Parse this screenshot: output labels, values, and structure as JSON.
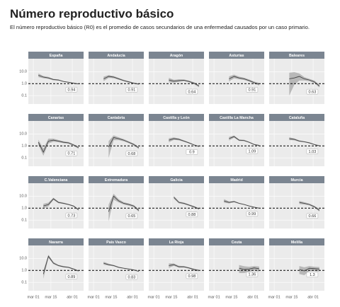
{
  "chart_data": {
    "type": "line",
    "title": "Número reproductivo básico",
    "subtitle": "El número reproductivo básico (R0) es el promedio de casos secundarios de una enfermedad causados por un caso primario.",
    "x": [
      4,
      8,
      12,
      16,
      20,
      24,
      28,
      32,
      36
    ],
    "xlim": [
      -4,
      40
    ],
    "xticks": [
      {
        "value": 0,
        "label": "mar 01"
      },
      {
        "value": 14,
        "label": "mar 15"
      },
      {
        "value": 31,
        "label": "abr 01"
      }
    ],
    "ylim": [
      0.02,
      120
    ],
    "yticks": [
      0.1,
      {
        "value": 1,
        "label": "1.0"
      },
      {
        "value": 10,
        "label": "10.0"
      }
    ],
    "log_y": true,
    "grid": true,
    "hline": 1,
    "color": "#444444",
    "band_color": "#b8b8b8",
    "panels": [
      {
        "title": "España",
        "values": [
          5,
          3.5,
          3,
          2.2,
          2,
          1.5,
          1.3,
          1.1,
          0.94
        ],
        "lower": [
          3.5,
          2.8,
          2.5,
          1.9,
          1.8,
          1.4,
          1.2,
          1,
          0.88
        ],
        "upper": [
          7,
          4.3,
          3.6,
          2.5,
          2.2,
          1.6,
          1.4,
          1.2,
          1
        ]
      },
      {
        "title": "Andalucía",
        "values": [
          null,
          2.5,
          4,
          3.5,
          2.5,
          1.8,
          1.4,
          1.1,
          0.91
        ],
        "lower": [
          null,
          1.6,
          3,
          2.8,
          2.1,
          1.6,
          1.2,
          1,
          0.8
        ],
        "upper": [
          null,
          3.8,
          5.2,
          4.3,
          3,
          2.1,
          1.6,
          1.2,
          1.03
        ]
      },
      {
        "title": "Aragón",
        "values": [
          null,
          null,
          2,
          1.6,
          1.8,
          1.9,
          1.5,
          1.1,
          0.64
        ],
        "lower": [
          null,
          null,
          1.3,
          1.2,
          1.4,
          1.6,
          1.3,
          0.9,
          0.5
        ],
        "upper": [
          null,
          null,
          3,
          2.1,
          2.3,
          2.2,
          1.8,
          1.3,
          0.8
        ]
      },
      {
        "title": "Asturias",
        "values": [
          null,
          null,
          2.5,
          4,
          3,
          2.5,
          1.8,
          1.2,
          0.91
        ],
        "lower": [
          null,
          null,
          1.5,
          2.8,
          2.3,
          2,
          1.5,
          1,
          0.7
        ],
        "upper": [
          null,
          null,
          4,
          5.6,
          3.8,
          3.1,
          2.2,
          1.5,
          1.15
        ]
      },
      {
        "title": "Baleares",
        "values": [
          null,
          null,
          2.5,
          3,
          4,
          2.5,
          2,
          1.4,
          0.63
        ],
        "lower": [
          null,
          null,
          0.1,
          0.8,
          1.8,
          1.8,
          1.6,
          1.1,
          0.48
        ],
        "upper": [
          null,
          null,
          8,
          9,
          7,
          3.5,
          2.5,
          1.8,
          0.8
        ]
      },
      {
        "title": "Canarias",
        "values": [
          2,
          0.3,
          2.5,
          3,
          2.5,
          2,
          1.8,
          1.2,
          0.71
        ],
        "lower": [
          1.2,
          0.15,
          1.6,
          2.2,
          2,
          1.7,
          1.5,
          1,
          0.58
        ],
        "upper": [
          3.2,
          0.6,
          4,
          4,
          3.1,
          2.4,
          2.1,
          1.4,
          0.86
        ]
      },
      {
        "title": "Cantabria",
        "values": [
          null,
          null,
          0.8,
          5,
          4,
          3,
          2,
          1.3,
          0.68
        ],
        "lower": [
          null,
          null,
          0.1,
          3,
          3,
          2.4,
          1.7,
          1.1,
          0.55
        ],
        "upper": [
          null,
          null,
          2.5,
          7.5,
          5.2,
          3.7,
          2.4,
          1.6,
          0.84
        ]
      },
      {
        "title": "Castilla y León",
        "values": [
          null,
          null,
          3,
          4,
          3.5,
          2.5,
          1.8,
          1.2,
          0.9
        ],
        "lower": [
          null,
          null,
          2,
          3.1,
          2.9,
          2.2,
          1.6,
          1.1,
          0.8
        ],
        "upper": [
          null,
          null,
          4.4,
          5.1,
          4.2,
          2.9,
          2,
          1.35,
          1
        ]
      },
      {
        "title": "Castilla La Mancha",
        "values": [
          null,
          null,
          4,
          6,
          3,
          2.8,
          2,
          1.3,
          1.09
        ],
        "lower": [
          null,
          null,
          2.8,
          4.8,
          2.6,
          2.5,
          1.8,
          1.2,
          1
        ],
        "upper": [
          null,
          null,
          5.6,
          7.4,
          3.5,
          3.2,
          2.2,
          1.45,
          1.2
        ]
      },
      {
        "title": "Cataluña",
        "values": [
          null,
          null,
          4,
          3.5,
          2.5,
          2.2,
          1.8,
          1.3,
          1.03
        ],
        "lower": [
          null,
          null,
          3,
          2.9,
          2.2,
          2,
          1.6,
          1.2,
          0.95
        ],
        "upper": [
          null,
          null,
          5.3,
          4.2,
          2.9,
          2.4,
          2,
          1.4,
          1.12
        ]
      },
      {
        "title": "C.Valenciana",
        "values": [
          null,
          1.5,
          2,
          6,
          3,
          2.5,
          2,
          1.5,
          0.73
        ],
        "lower": [
          null,
          1,
          1.4,
          4.8,
          2.6,
          2.2,
          1.8,
          1.3,
          0.62
        ],
        "upper": [
          null,
          2.3,
          2.9,
          7.4,
          3.5,
          2.9,
          2.2,
          1.7,
          0.86
        ]
      },
      {
        "title": "Extremadura",
        "values": [
          null,
          null,
          0.5,
          10,
          4,
          2.5,
          2,
          1.5,
          0.65
        ],
        "lower": [
          null,
          null,
          0.08,
          5,
          3,
          2,
          1.6,
          1.2,
          0.5
        ],
        "upper": [
          null,
          null,
          2,
          16,
          5.5,
          3.1,
          2.5,
          1.8,
          0.84
        ]
      },
      {
        "title": "Galicia",
        "values": [
          null,
          null,
          null,
          8,
          3,
          2.5,
          1.8,
          1.3,
          0.88
        ],
        "lower": [
          null,
          null,
          null,
          6,
          2.5,
          2.1,
          1.6,
          1.1,
          0.76
        ],
        "upper": [
          null,
          null,
          null,
          10.5,
          3.6,
          2.9,
          2.1,
          1.5,
          1
        ]
      },
      {
        "title": "Madrid",
        "values": [
          null,
          4,
          3,
          3.5,
          2.5,
          2,
          1.5,
          1.2,
          0.99
        ],
        "lower": [
          null,
          2.8,
          2.5,
          3.1,
          2.3,
          1.9,
          1.4,
          1.1,
          0.93
        ],
        "upper": [
          null,
          5.6,
          3.6,
          4,
          2.7,
          2.1,
          1.6,
          1.3,
          1.05
        ]
      },
      {
        "title": "Murcia",
        "values": [
          null,
          null,
          null,
          null,
          3,
          2.5,
          2,
          1.3,
          0.66
        ],
        "lower": [
          null,
          null,
          null,
          null,
          2.2,
          2,
          1.7,
          1.1,
          0.52
        ],
        "upper": [
          null,
          null,
          null,
          null,
          4,
          3.1,
          2.4,
          1.55,
          0.84
        ]
      },
      {
        "title": "Navarra",
        "values": [
          null,
          0.5,
          15,
          4,
          2.5,
          2,
          1.8,
          1.3,
          0.89
        ],
        "lower": [
          null,
          0.2,
          11,
          3.3,
          2.2,
          1.8,
          1.6,
          1.15,
          0.78
        ],
        "upper": [
          null,
          1,
          20,
          5,
          2.9,
          2.3,
          2,
          1.45,
          1
        ]
      },
      {
        "title": "País Vasco",
        "values": [
          null,
          4,
          3,
          2.5,
          1.8,
          1.5,
          1.3,
          1.1,
          0.83
        ],
        "lower": [
          null,
          3,
          2.5,
          2.2,
          1.6,
          1.4,
          1.2,
          1,
          0.76
        ],
        "upper": [
          null,
          5.3,
          3.6,
          2.8,
          2,
          1.6,
          1.4,
          1.2,
          0.9
        ]
      },
      {
        "title": "La Rioja",
        "values": [
          null,
          null,
          2.5,
          3,
          2,
          2,
          1.6,
          1.2,
          0.98
        ],
        "lower": [
          null,
          null,
          1.6,
          2.4,
          1.7,
          1.7,
          1.4,
          1,
          0.82
        ],
        "upper": [
          null,
          null,
          3.8,
          3.8,
          2.4,
          2.3,
          1.8,
          1.4,
          1.15
        ]
      },
      {
        "title": "Ceuta",
        "values": [
          null,
          null,
          null,
          null,
          1.5,
          1.2,
          1.3,
          1.6,
          1.36
        ],
        "lower": [
          null,
          null,
          null,
          null,
          0.6,
          0.6,
          0.8,
          1,
          0.8
        ],
        "upper": [
          null,
          null,
          null,
          null,
          2.8,
          2.2,
          2,
          2.3,
          2.1
        ]
      },
      {
        "title": "Melilla",
        "values": [
          null,
          null,
          null,
          null,
          1.2,
          0.9,
          1.5,
          1.4,
          1.3
        ],
        "lower": [
          null,
          null,
          null,
          null,
          0.5,
          0.4,
          0.9,
          0.9,
          0.8
        ],
        "upper": [
          null,
          null,
          null,
          null,
          2.3,
          1.8,
          2.3,
          2,
          1.9
        ]
      }
    ]
  }
}
